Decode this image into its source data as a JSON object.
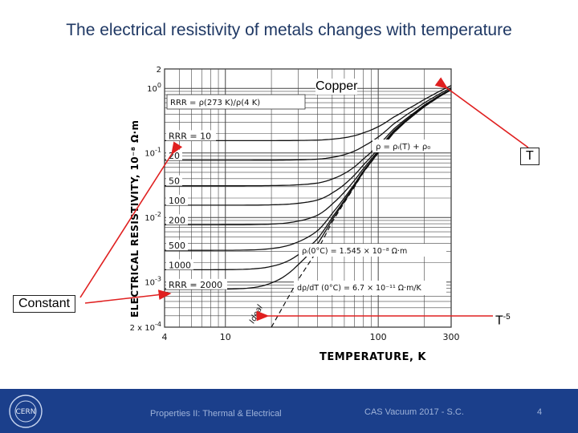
{
  "slide": {
    "title": "The electrical resistivity of metals changes with temperature"
  },
  "callouts": {
    "copper": "Copper",
    "t": "T",
    "constant": "Constant",
    "t_minus5_base": "T",
    "t_minus5_exp": "-5"
  },
  "footer": {
    "left": "Properties II: Thermal & Electrical",
    "center": "CAS Vacuum 2017 - S.C.",
    "page": "4",
    "logo_text": "CERN"
  },
  "colors": {
    "arrow": "#e02020",
    "footer_bg": "#1b3f8b",
    "title": "#1f3864"
  },
  "chart_data": {
    "type": "line",
    "xscale": "log",
    "yscale": "log",
    "xlim": [
      4,
      300
    ],
    "ylim": [
      0.0002,
      2
    ],
    "xlabel": "TEMPERATURE, K",
    "ylabel": "ELECTRICAL RESISTIVITY, 10⁻⁸ Ω·m",
    "x_ticks": [
      {
        "value": 4,
        "label": "4"
      },
      {
        "value": 10,
        "label": "10"
      },
      {
        "value": 100,
        "label": "100"
      },
      {
        "value": 300,
        "label": "300"
      }
    ],
    "y_ticks": [
      {
        "value": 2,
        "label": "2",
        "exp": ""
      },
      {
        "value": 1,
        "label": "10",
        "exp": "0"
      },
      {
        "value": 0.1,
        "label": "10",
        "exp": "-1"
      },
      {
        "value": 0.01,
        "label": "10",
        "exp": "-2"
      },
      {
        "value": 0.001,
        "label": "10",
        "exp": "-3"
      },
      {
        "value": 0.0002,
        "label": "2 x 10",
        "exp": "-4"
      }
    ],
    "grid": true,
    "annotations": {
      "rrr_def": "RRR = ρ(273 K)/ρ(4 K)",
      "matthiessen": "ρ = ρᵢ(T) + ρ₀",
      "rho_i": "ρᵢ(0°C) = 1.545 × 10⁻⁸ Ω·m",
      "drho": "dρ/dT (0°C) = 6.7 × 10⁻¹¹ Ω·m/K",
      "ideal": "Ideal"
    },
    "series": [
      {
        "rrr_label": "RRR = 10",
        "residual": 0.155
      },
      {
        "rrr_label": "20",
        "residual": 0.077
      },
      {
        "rrr_label": "50",
        "residual": 0.031
      },
      {
        "rrr_label": "100",
        "residual": 0.0155
      },
      {
        "rrr_label": "200",
        "residual": 0.0077
      },
      {
        "rrr_label": "500",
        "residual": 0.0031
      },
      {
        "rrr_label": "1000",
        "residual": 0.00155
      },
      {
        "rrr_label": "RRR = 2000",
        "residual": 0.00077
      }
    ],
    "ideal_curve": {
      "x": [
        20,
        30,
        40,
        50,
        60,
        70,
        80,
        100,
        125,
        150,
        200,
        250,
        300
      ],
      "y": [
        0.0002,
        0.0011,
        0.0031,
        0.0085,
        0.017,
        0.03,
        0.05,
        0.1,
        0.2,
        0.3,
        0.52,
        0.74,
        0.95
      ]
    }
  }
}
